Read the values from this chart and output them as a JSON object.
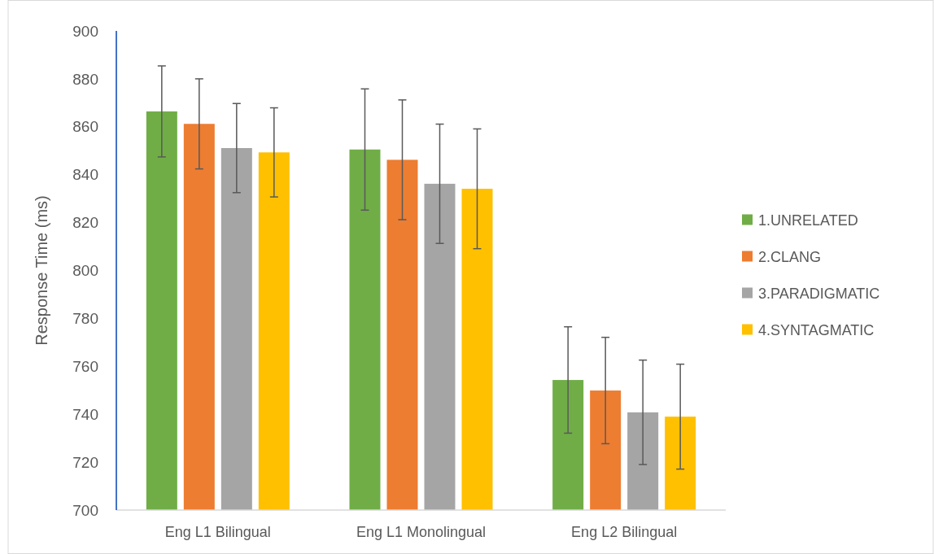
{
  "chart_data": {
    "type": "bar",
    "ylabel": "Response Time (ms)",
    "categories": [
      "Eng L1 Bilingual",
      "Eng L1 Monolingual",
      "Eng L2 Bilingual"
    ],
    "series": [
      {
        "name": "1.UNRELATED",
        "color": "#70ad47",
        "values": [
          866.4,
          850.5,
          754.3
        ],
        "errors": [
          19,
          25.3,
          22.2
        ]
      },
      {
        "name": "2.CLANG",
        "color": "#ed7d31",
        "values": [
          861.2,
          846.2,
          749.9
        ],
        "errors": [
          18.8,
          25,
          22.2
        ]
      },
      {
        "name": "3.PARADIGMATIC",
        "color": "#a5a5a5",
        "values": [
          851.1,
          836.2,
          740.8
        ],
        "errors": [
          18.6,
          24.9,
          21.8
        ]
      },
      {
        "name": "4.SYNTAGMATIC",
        "color": "#ffc000",
        "values": [
          849.3,
          834.1,
          739
        ],
        "errors": [
          18.6,
          25,
          21.9
        ]
      }
    ],
    "ylim": [
      700,
      900
    ],
    "yticks": [
      700,
      720,
      740,
      760,
      780,
      800,
      820,
      840,
      860,
      880,
      900
    ],
    "grid": false,
    "legend": "right"
  }
}
